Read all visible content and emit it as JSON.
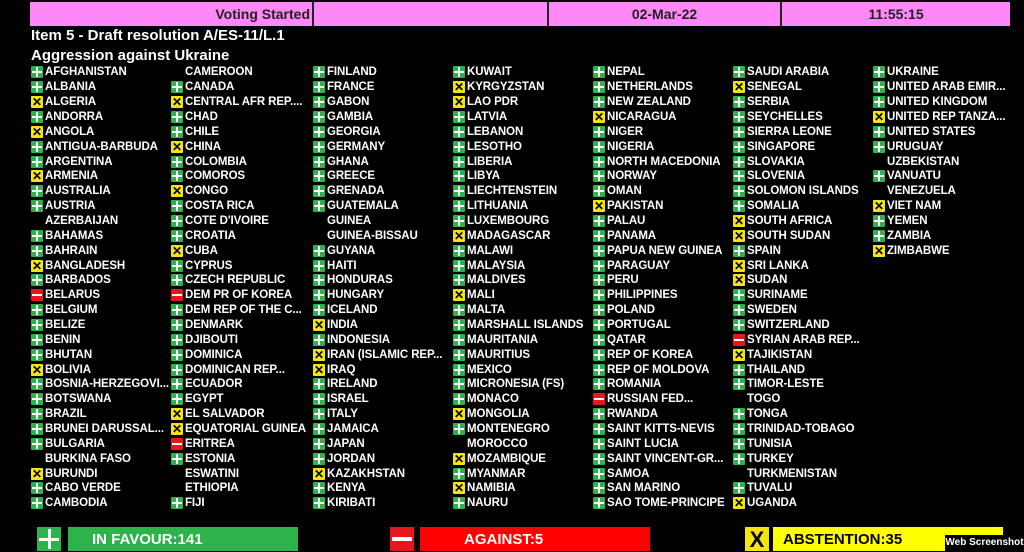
{
  "header": {
    "status": "Voting Started",
    "date": "02-Mar-22",
    "time": "11:55:15"
  },
  "item": {
    "title": "Item 5 - Draft resolution A/ES-11/L.1",
    "subject": "Aggression against Ukraine"
  },
  "colors": {
    "yes": "#2db34a",
    "no": "#e8161b",
    "abstain": "#f5e50f",
    "header": "#ff88f8"
  },
  "legend": {
    "yes": "plus-icon",
    "no": "minus-icon",
    "abstain": "x-icon",
    "none": "no vote"
  },
  "columns": [
    [
      [
        "Y",
        "AFGHANISTAN"
      ],
      [
        "Y",
        "ALBANIA"
      ],
      [
        "A",
        "ALGERIA"
      ],
      [
        "Y",
        "ANDORRA"
      ],
      [
        "A",
        "ANGOLA"
      ],
      [
        "Y",
        "ANTIGUA-BARBUDA"
      ],
      [
        "Y",
        "ARGENTINA"
      ],
      [
        "A",
        "ARMENIA"
      ],
      [
        "Y",
        "AUSTRALIA"
      ],
      [
        "Y",
        "AUSTRIA"
      ],
      [
        "",
        "AZERBAIJAN"
      ],
      [
        "Y",
        "BAHAMAS"
      ],
      [
        "Y",
        "BAHRAIN"
      ],
      [
        "A",
        "BANGLADESH"
      ],
      [
        "Y",
        "BARBADOS"
      ],
      [
        "N",
        "BELARUS"
      ],
      [
        "Y",
        "BELGIUM"
      ],
      [
        "Y",
        "BELIZE"
      ],
      [
        "Y",
        "BENIN"
      ],
      [
        "Y",
        "BHUTAN"
      ],
      [
        "A",
        "BOLIVIA"
      ],
      [
        "Y",
        "BOSNIA-HERZEGOVI..."
      ],
      [
        "Y",
        "BOTSWANA"
      ],
      [
        "Y",
        "BRAZIL"
      ],
      [
        "Y",
        "BRUNEI DARUSSAL..."
      ],
      [
        "Y",
        "BULGARIA"
      ],
      [
        "",
        "BURKINA FASO"
      ],
      [
        "A",
        "BURUNDI"
      ],
      [
        "Y",
        "CABO VERDE"
      ],
      [
        "Y",
        "CAMBODIA"
      ]
    ],
    [
      [
        "",
        "CAMEROON"
      ],
      [
        "Y",
        "CANADA"
      ],
      [
        "A",
        "CENTRAL AFR REP...."
      ],
      [
        "Y",
        "CHAD"
      ],
      [
        "Y",
        "CHILE"
      ],
      [
        "A",
        "CHINA"
      ],
      [
        "Y",
        "COLOMBIA"
      ],
      [
        "Y",
        "COMOROS"
      ],
      [
        "A",
        "CONGO"
      ],
      [
        "Y",
        "COSTA RICA"
      ],
      [
        "Y",
        "COTE D'IVOIRE"
      ],
      [
        "Y",
        "CROATIA"
      ],
      [
        "A",
        "CUBA"
      ],
      [
        "Y",
        "CYPRUS"
      ],
      [
        "Y",
        "CZECH REPUBLIC"
      ],
      [
        "N",
        "DEM PR OF KOREA"
      ],
      [
        "Y",
        "DEM REP OF THE C..."
      ],
      [
        "Y",
        "DENMARK"
      ],
      [
        "Y",
        "DJIBOUTI"
      ],
      [
        "Y",
        "DOMINICA"
      ],
      [
        "Y",
        "DOMINICAN REP..."
      ],
      [
        "Y",
        "ECUADOR"
      ],
      [
        "Y",
        "EGYPT"
      ],
      [
        "A",
        "EL SALVADOR"
      ],
      [
        "A",
        "EQUATORIAL GUINEA"
      ],
      [
        "N",
        "ERITREA"
      ],
      [
        "Y",
        "ESTONIA"
      ],
      [
        "",
        "ESWATINI"
      ],
      [
        "",
        "ETHIOPIA"
      ],
      [
        "Y",
        "FIJI"
      ]
    ],
    [
      [
        "Y",
        "FINLAND"
      ],
      [
        "Y",
        "FRANCE"
      ],
      [
        "Y",
        "GABON"
      ],
      [
        "Y",
        "GAMBIA"
      ],
      [
        "Y",
        "GEORGIA"
      ],
      [
        "Y",
        "GERMANY"
      ],
      [
        "Y",
        "GHANA"
      ],
      [
        "Y",
        "GREECE"
      ],
      [
        "Y",
        "GRENADA"
      ],
      [
        "Y",
        "GUATEMALA"
      ],
      [
        "",
        "GUINEA"
      ],
      [
        "",
        "GUINEA-BISSAU"
      ],
      [
        "Y",
        "GUYANA"
      ],
      [
        "Y",
        "HAITI"
      ],
      [
        "Y",
        "HONDURAS"
      ],
      [
        "Y",
        "HUNGARY"
      ],
      [
        "Y",
        "ICELAND"
      ],
      [
        "A",
        "INDIA"
      ],
      [
        "Y",
        "INDONESIA"
      ],
      [
        "A",
        "IRAN (ISLAMIC REP..."
      ],
      [
        "A",
        "IRAQ"
      ],
      [
        "Y",
        "IRELAND"
      ],
      [
        "Y",
        "ISRAEL"
      ],
      [
        "Y",
        "ITALY"
      ],
      [
        "Y",
        "JAMAICA"
      ],
      [
        "Y",
        "JAPAN"
      ],
      [
        "Y",
        "JORDAN"
      ],
      [
        "A",
        "KAZAKHSTAN"
      ],
      [
        "Y",
        "KENYA"
      ],
      [
        "Y",
        "KIRIBATI"
      ]
    ],
    [
      [
        "Y",
        "KUWAIT"
      ],
      [
        "A",
        "KYRGYZSTAN"
      ],
      [
        "A",
        "LAO PDR"
      ],
      [
        "Y",
        "LATVIA"
      ],
      [
        "Y",
        "LEBANON"
      ],
      [
        "Y",
        "LESOTHO"
      ],
      [
        "Y",
        "LIBERIA"
      ],
      [
        "Y",
        "LIBYA"
      ],
      [
        "Y",
        "LIECHTENSTEIN"
      ],
      [
        "Y",
        "LITHUANIA"
      ],
      [
        "Y",
        "LUXEMBOURG"
      ],
      [
        "A",
        "MADAGASCAR"
      ],
      [
        "Y",
        "MALAWI"
      ],
      [
        "Y",
        "MALAYSIA"
      ],
      [
        "Y",
        "MALDIVES"
      ],
      [
        "A",
        "MALI"
      ],
      [
        "Y",
        "MALTA"
      ],
      [
        "Y",
        "MARSHALL ISLANDS"
      ],
      [
        "Y",
        "MAURITANIA"
      ],
      [
        "Y",
        "MAURITIUS"
      ],
      [
        "Y",
        "MEXICO"
      ],
      [
        "Y",
        "MICRONESIA (FS)"
      ],
      [
        "Y",
        "MONACO"
      ],
      [
        "A",
        "MONGOLIA"
      ],
      [
        "Y",
        "MONTENEGRO"
      ],
      [
        "",
        "MOROCCO"
      ],
      [
        "A",
        "MOZAMBIQUE"
      ],
      [
        "Y",
        "MYANMAR"
      ],
      [
        "A",
        "NAMIBIA"
      ],
      [
        "Y",
        "NAURU"
      ]
    ],
    [
      [
        "Y",
        "NEPAL"
      ],
      [
        "Y",
        "NETHERLANDS"
      ],
      [
        "Y",
        "NEW ZEALAND"
      ],
      [
        "A",
        "NICARAGUA"
      ],
      [
        "Y",
        "NIGER"
      ],
      [
        "Y",
        "NIGERIA"
      ],
      [
        "Y",
        "NORTH MACEDONIA"
      ],
      [
        "Y",
        "NORWAY"
      ],
      [
        "Y",
        "OMAN"
      ],
      [
        "A",
        "PAKISTAN"
      ],
      [
        "Y",
        "PALAU"
      ],
      [
        "Y",
        "PANAMA"
      ],
      [
        "Y",
        "PAPUA NEW GUINEA"
      ],
      [
        "Y",
        "PARAGUAY"
      ],
      [
        "Y",
        "PERU"
      ],
      [
        "Y",
        "PHILIPPINES"
      ],
      [
        "Y",
        "POLAND"
      ],
      [
        "Y",
        "PORTUGAL"
      ],
      [
        "Y",
        "QATAR"
      ],
      [
        "Y",
        "REP OF KOREA"
      ],
      [
        "Y",
        "REP OF MOLDOVA"
      ],
      [
        "Y",
        "ROMANIA"
      ],
      [
        "N",
        "RUSSIAN FED..."
      ],
      [
        "Y",
        "RWANDA"
      ],
      [
        "Y",
        "SAINT KITTS-NEVIS"
      ],
      [
        "Y",
        "SAINT LUCIA"
      ],
      [
        "Y",
        "SAINT VINCENT-GR..."
      ],
      [
        "Y",
        "SAMOA"
      ],
      [
        "Y",
        "SAN MARINO"
      ],
      [
        "Y",
        "SAO TOME-PRINCIPE"
      ]
    ],
    [
      [
        "Y",
        "SAUDI ARABIA"
      ],
      [
        "A",
        "SENEGAL"
      ],
      [
        "Y",
        "SERBIA"
      ],
      [
        "Y",
        "SEYCHELLES"
      ],
      [
        "Y",
        "SIERRA LEONE"
      ],
      [
        "Y",
        "SINGAPORE"
      ],
      [
        "Y",
        "SLOVAKIA"
      ],
      [
        "Y",
        "SLOVENIA"
      ],
      [
        "Y",
        "SOLOMON ISLANDS"
      ],
      [
        "Y",
        "SOMALIA"
      ],
      [
        "A",
        "SOUTH AFRICA"
      ],
      [
        "A",
        "SOUTH SUDAN"
      ],
      [
        "Y",
        "SPAIN"
      ],
      [
        "A",
        "SRI LANKA"
      ],
      [
        "A",
        "SUDAN"
      ],
      [
        "Y",
        "SURINAME"
      ],
      [
        "Y",
        "SWEDEN"
      ],
      [
        "Y",
        "SWITZERLAND"
      ],
      [
        "N",
        "SYRIAN ARAB REP..."
      ],
      [
        "A",
        "TAJIKISTAN"
      ],
      [
        "Y",
        "THAILAND"
      ],
      [
        "Y",
        "TIMOR-LESTE"
      ],
      [
        "",
        "TOGO"
      ],
      [
        "Y",
        "TONGA"
      ],
      [
        "Y",
        "TRINIDAD-TOBAGO"
      ],
      [
        "Y",
        "TUNISIA"
      ],
      [
        "Y",
        "TURKEY"
      ],
      [
        "",
        "TURKMENISTAN"
      ],
      [
        "Y",
        "TUVALU"
      ],
      [
        "A",
        "UGANDA"
      ]
    ],
    [
      [
        "Y",
        "UKRAINE"
      ],
      [
        "Y",
        "UNITED ARAB EMIR..."
      ],
      [
        "Y",
        "UNITED KINGDOM"
      ],
      [
        "A",
        "UNITED REP TANZA..."
      ],
      [
        "Y",
        "UNITED STATES"
      ],
      [
        "Y",
        "URUGUAY"
      ],
      [
        "",
        "UZBEKISTAN"
      ],
      [
        "Y",
        "VANUATU"
      ],
      [
        "",
        "VENEZUELA"
      ],
      [
        "A",
        "VIET NAM"
      ],
      [
        "Y",
        "YEMEN"
      ],
      [
        "Y",
        "ZAMBIA"
      ],
      [
        "A",
        "ZIMBABWE"
      ]
    ]
  ],
  "totals": {
    "in_favour": "IN FAVOUR:141",
    "against": "AGAINST:5",
    "abstention": "ABSTENTION:35"
  },
  "watermark": "Web Screenshot"
}
